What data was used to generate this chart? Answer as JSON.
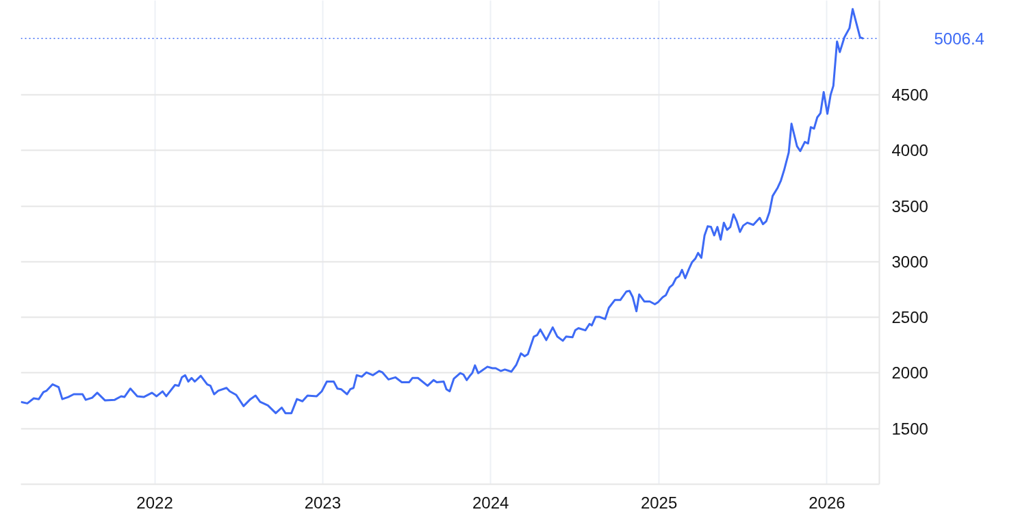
{
  "chart_data": {
    "type": "line",
    "x": [
      "2021-03-16",
      "2021-03-30",
      "2021-04-13",
      "2021-04-24",
      "2021-05-04",
      "2021-05-11",
      "2021-05-24",
      "2021-06-06",
      "2021-06-14",
      "2021-06-27",
      "2021-07-09",
      "2021-07-28",
      "2021-08-04",
      "2021-08-18",
      "2021-08-29",
      "2021-09-15",
      "2021-10-06",
      "2021-10-20",
      "2021-10-27",
      "2021-11-09",
      "2021-11-24",
      "2021-12-08",
      "2021-12-26",
      "2022-01-05",
      "2022-01-18",
      "2022-01-26",
      "2022-02-14",
      "2022-02-22",
      "2022-03-01",
      "2022-03-08",
      "2022-03-15",
      "2022-03-22",
      "2022-03-29",
      "2022-04-11",
      "2022-04-25",
      "2022-05-02",
      "2022-05-10",
      "2022-05-19",
      "2022-06-06",
      "2022-06-13",
      "2022-06-27",
      "2022-07-13",
      "2022-07-28",
      "2022-08-08",
      "2022-08-18",
      "2022-09-04",
      "2022-09-21",
      "2022-10-04",
      "2022-10-12",
      "2022-10-25",
      "2022-11-06",
      "2022-11-18",
      "2022-11-29",
      "2022-12-19",
      "2022-12-30",
      "2023-01-10",
      "2023-01-25",
      "2023-02-02",
      "2023-02-10",
      "2023-02-23",
      "2023-03-02",
      "2023-03-09",
      "2023-03-16",
      "2023-03-27",
      "2023-04-06",
      "2023-04-20",
      "2023-05-04",
      "2023-05-11",
      "2023-05-24",
      "2023-06-08",
      "2023-06-22",
      "2023-07-08",
      "2023-07-15",
      "2023-07-27",
      "2023-08-17",
      "2023-08-30",
      "2023-09-06",
      "2023-09-21",
      "2023-09-27",
      "2023-10-04",
      "2023-10-13",
      "2023-10-27",
      "2023-11-03",
      "2023-11-10",
      "2023-11-18",
      "2023-11-22",
      "2023-11-28",
      "2023-12-05",
      "2023-12-12",
      "2023-12-25",
      "2024-01-05",
      "2024-01-12",
      "2024-01-23",
      "2024-02-01",
      "2024-02-15",
      "2024-02-26",
      "2024-03-07",
      "2024-03-15",
      "2024-03-22",
      "2024-04-04",
      "2024-04-11",
      "2024-04-18",
      "2024-05-01",
      "2024-05-15",
      "2024-05-25",
      "2024-06-06",
      "2024-06-13",
      "2024-06-27",
      "2024-07-03",
      "2024-07-10",
      "2024-07-25",
      "2024-08-03",
      "2024-08-08",
      "2024-08-16",
      "2024-08-25",
      "2024-09-06",
      "2024-09-14",
      "2024-09-27",
      "2024-10-09",
      "2024-10-22",
      "2024-10-29",
      "2024-11-05",
      "2024-11-13",
      "2024-11-19",
      "2024-11-30",
      "2024-12-12",
      "2024-12-23",
      "2024-12-30",
      "2025-01-09",
      "2025-01-16",
      "2025-01-24",
      "2025-01-31",
      "2025-02-07",
      "2025-02-14",
      "2025-02-20",
      "2025-02-27",
      "2025-03-07",
      "2025-03-14",
      "2025-03-21",
      "2025-03-27",
      "2025-04-03",
      "2025-04-10",
      "2025-04-17",
      "2025-04-24",
      "2025-05-01",
      "2025-05-08",
      "2025-05-15",
      "2025-05-22",
      "2025-05-29",
      "2025-06-05",
      "2025-06-12",
      "2025-06-19",
      "2025-06-26",
      "2025-07-03",
      "2025-07-12",
      "2025-07-25",
      "2025-08-08",
      "2025-08-15",
      "2025-08-22",
      "2025-08-29",
      "2025-09-05",
      "2025-09-16",
      "2025-09-23",
      "2025-09-30",
      "2025-10-10",
      "2025-10-16",
      "2025-10-28",
      "2025-11-04",
      "2025-11-14",
      "2025-11-21",
      "2025-11-27",
      "2025-12-04",
      "2025-12-11",
      "2025-12-18",
      "2025-12-25",
      "2026-01-02",
      "2026-01-09",
      "2026-01-15",
      "2026-01-23",
      "2026-01-29",
      "2026-02-08",
      "2026-02-19",
      "2026-02-26",
      "2026-03-14",
      "2026-03-21"
    ],
    "series": [
      {
        "color": "#3d6af5",
        "values": [
          1740,
          1727,
          1772,
          1765,
          1828,
          1841,
          1898,
          1873,
          1765,
          1784,
          1809,
          1809,
          1759,
          1778,
          1822,
          1753,
          1759,
          1791,
          1784,
          1860,
          1791,
          1784,
          1822,
          1791,
          1835,
          1791,
          1892,
          1885,
          1961,
          1980,
          1923,
          1955,
          1923,
          1974,
          1898,
          1885,
          1809,
          1841,
          1866,
          1835,
          1803,
          1702,
          1765,
          1797,
          1740,
          1708,
          1639,
          1689,
          1639,
          1639,
          1765,
          1746,
          1797,
          1791,
          1835,
          1923,
          1923,
          1860,
          1854,
          1809,
          1854,
          1866,
          1980,
          1967,
          2005,
          1980,
          2018,
          2005,
          1942,
          1961,
          1917,
          1917,
          1955,
          1955,
          1885,
          1936,
          1917,
          1923,
          1854,
          1835,
          1948,
          1999,
          1986,
          1936,
          1980,
          1999,
          2068,
          1999,
          2018,
          2056,
          2043,
          2043,
          2018,
          2031,
          2012,
          2075,
          2176,
          2151,
          2169,
          2327,
          2340,
          2391,
          2296,
          2410,
          2327,
          2290,
          2327,
          2321,
          2384,
          2403,
          2384,
          2441,
          2428,
          2504,
          2504,
          2485,
          2586,
          2656,
          2656,
          2732,
          2738,
          2681,
          2555,
          2706,
          2643,
          2643,
          2618,
          2637,
          2681,
          2700,
          2770,
          2795,
          2852,
          2871,
          2927,
          2852,
          2934,
          2997,
          3028,
          3079,
          3035,
          3237,
          3319,
          3313,
          3237,
          3313,
          3199,
          3351,
          3287,
          3313,
          3426,
          3363,
          3268,
          3325,
          3351,
          3332,
          3395,
          3338,
          3363,
          3445,
          3591,
          3666,
          3730,
          3824,
          3982,
          4241,
          4039,
          3995,
          4077,
          4064,
          4210,
          4197,
          4298,
          4336,
          4525,
          4330,
          4500,
          4582,
          4980,
          4885,
          5018,
          5100,
          5271,
          5018,
          5006.4
        ]
      }
    ],
    "xlim": [
      "2021-03-16",
      "2026-04-25"
    ],
    "xticks": [
      "2022",
      "2023",
      "2024",
      "2025",
      "2026"
    ],
    "ylim": [
      1000,
      5350
    ],
    "yticks": [
      1500,
      2000,
      2500,
      3000,
      3500,
      4000,
      4500
    ],
    "ref_lines": [
      {
        "axis": "y",
        "value": 5006.4,
        "label": "5006.4",
        "color": "#3d6af5",
        "line_style": "dotted"
      }
    ],
    "grid": true
  }
}
